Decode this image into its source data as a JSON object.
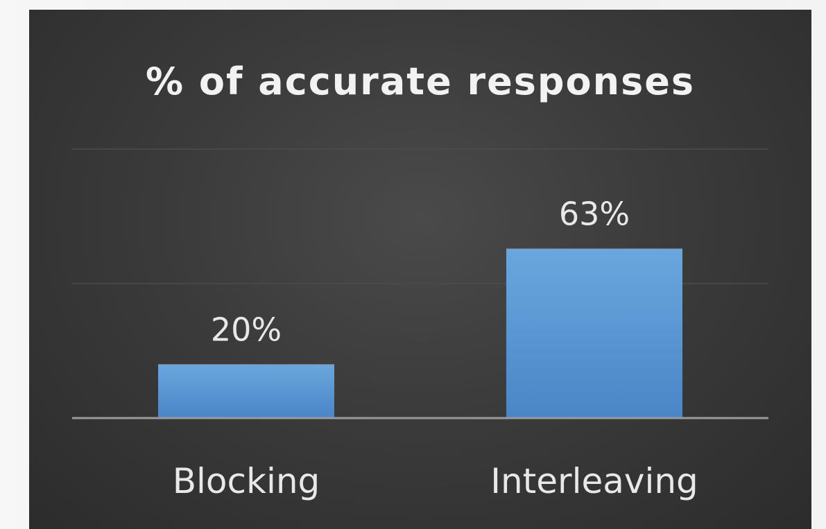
{
  "chart_data": {
    "type": "bar",
    "title": "% of accurate responses",
    "categories": [
      "Blocking",
      "Interleaving"
    ],
    "values": [
      20,
      63
    ],
    "data_labels": [
      "20%",
      "63%"
    ],
    "xlabel": "",
    "ylabel": "",
    "ylim": [
      0,
      100
    ],
    "grid": true,
    "legend": "none",
    "colors": {
      "bar": "#5b9bd5",
      "background": "#3a3a3a",
      "text": "#e8e8e8",
      "gridline": "#4c4c4c",
      "axis": "#9a9a9a"
    }
  }
}
